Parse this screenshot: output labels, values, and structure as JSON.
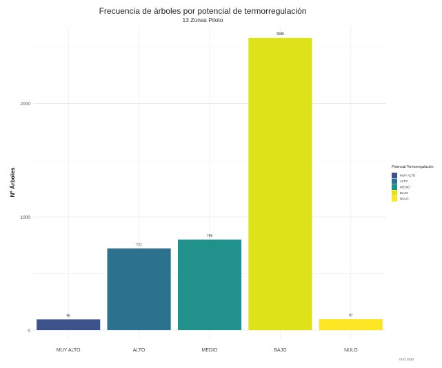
{
  "chart_data": {
    "type": "bar",
    "title": "Frecuencia de árboles por potencial de termorregulación",
    "subtitle": "13 Zonas Piloto",
    "xlabel": "",
    "ylabel": "Nº Árboles",
    "categories": [
      "MUY ALTO",
      "ALTO",
      "MEDIO",
      "BAJO",
      "NULO"
    ],
    "values": [
      95,
      721,
      799,
      2580,
      97
    ],
    "data_labels": [
      "95",
      "721",
      "799",
      "2580",
      "97"
    ],
    "colors": [
      "#3b528b",
      "#2c728e",
      "#21918c",
      "#dde318",
      "#fde725"
    ],
    "ylim": [
      0,
      2700
    ],
    "yticks": [
      0,
      1000,
      2000
    ],
    "ytick_labels": [
      "0",
      "1000",
      "2000"
    ],
    "grid": true,
    "legend": {
      "title": "Potencial Termorregulación",
      "placement": "right",
      "items": [
        "MUY ALTO",
        "ALTO",
        "MEDIO",
        "BAJO",
        "NULO"
      ]
    },
    "caption": "©UG 2020"
  }
}
